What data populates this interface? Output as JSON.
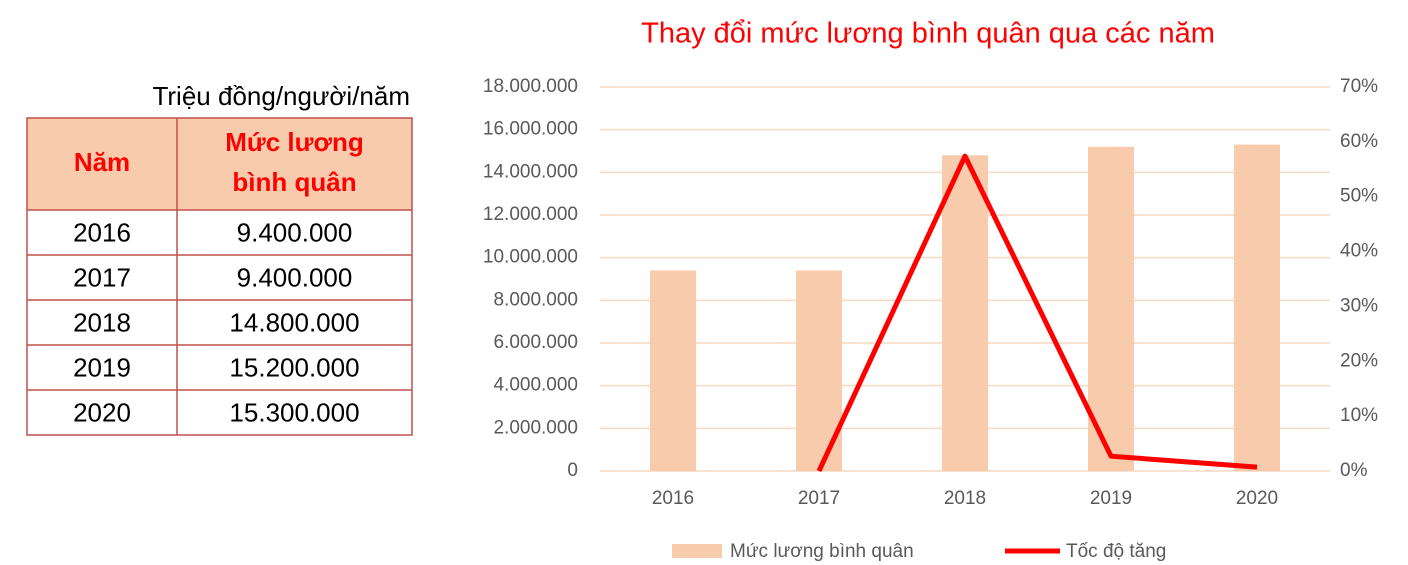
{
  "table": {
    "unit": "Triệu đồng/người/năm",
    "header": [
      [
        "Năm"
      ],
      [
        "Mức lương",
        "bình quân"
      ]
    ],
    "rows": [
      [
        "2016",
        "9.400.000"
      ],
      [
        "2017",
        "9.400.000"
      ],
      [
        "2018",
        "14.800.000"
      ],
      [
        "2019",
        "15.200.000"
      ],
      [
        "2020",
        "15.300.000"
      ]
    ]
  },
  "chart_data": {
    "type": "bar",
    "title": "Thay đổi mức lương bình quân qua các năm",
    "categories": [
      "2016",
      "2017",
      "2018",
      "2019",
      "2020"
    ],
    "series": [
      {
        "name": "Mức lương bình quân",
        "color": "#f8cbad",
        "values": [
          9400000,
          9400000,
          14800000,
          15200000,
          15300000
        ]
      },
      {
        "name": "Tốc độ tăng",
        "color": "#ff0000",
        "type": "line",
        "axis": "y2",
        "values": [
          null,
          0,
          57.4,
          2.7,
          0.7
        ]
      }
    ],
    "ylim": [
      0,
      18000000
    ],
    "yticks": [
      0,
      {
        "value": 2000000,
        "label": "2.000.000"
      },
      {
        "value": 4000000,
        "label": "4.000.000"
      },
      {
        "value": 6000000,
        "label": "6.000.000"
      },
      {
        "value": 8000000,
        "label": "8.000.000"
      },
      {
        "value": 10000000,
        "label": "10.000.000"
      },
      {
        "value": 12000000,
        "label": "12.000.000"
      },
      {
        "value": 14000000,
        "label": "14.000.000"
      },
      {
        "value": 16000000,
        "label": "16.000.000"
      },
      {
        "value": 18000000,
        "label": "18.000.000"
      }
    ],
    "y2lim": [
      0,
      70
    ],
    "y2ticks": [
      {
        "value": 0,
        "label": "0%"
      },
      {
        "value": 10,
        "label": "10%"
      },
      {
        "value": 20,
        "label": "20%"
      },
      {
        "value": 30,
        "label": "30%"
      },
      {
        "value": 40,
        "label": "40%"
      },
      {
        "value": 50,
        "label": "50%"
      },
      {
        "value": 60,
        "label": "60%"
      },
      {
        "value": 70,
        "label": "70%"
      }
    ],
    "grid": true,
    "legend": "bottom"
  }
}
